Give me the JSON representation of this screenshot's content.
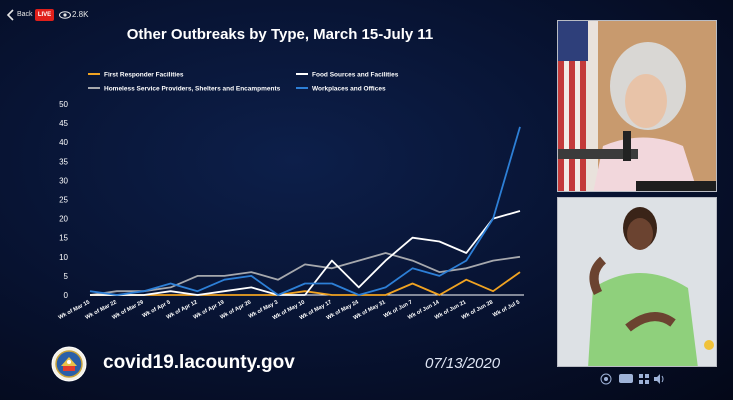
{
  "topbar": {
    "back_label": "Back",
    "live_label": "LIVE",
    "viewer_count": "2.8K"
  },
  "chart_data": {
    "type": "line",
    "title": "Other Outbreaks by Type, March 15-July 11",
    "categories": [
      "Wk of Mar 15",
      "Wk of Mar 22",
      "Wk of Mar 29",
      "Wk of Apr 5",
      "Wk of Apr 12",
      "Wk of Apr 19",
      "Wk of Apr 26",
      "Wk of May 3",
      "Wk of May 10",
      "Wk of May 17",
      "Wk of May 24",
      "Wk of May 31",
      "Wk of Jun 7",
      "Wk of Jun 14",
      "Wk of Jun 21",
      "Wk of Jun 28",
      "Wk of Jul 5"
    ],
    "ylim": [
      0,
      50
    ],
    "yticks": [
      0,
      5,
      10,
      15,
      20,
      25,
      30,
      35,
      40,
      45,
      50
    ],
    "legend_position": "top",
    "series": [
      {
        "name": "First Responder Facilities",
        "color": "#f0a322",
        "values": [
          0,
          0,
          0,
          0,
          0,
          0,
          0,
          0,
          1,
          0,
          0,
          0,
          3,
          0,
          4,
          1,
          6
        ]
      },
      {
        "name": "Food Sources and Facilities",
        "color": "#ffffff",
        "values": [
          0,
          0,
          0,
          1,
          0,
          1,
          2,
          0,
          0,
          9,
          2,
          9,
          15,
          14,
          11,
          20,
          22
        ]
      },
      {
        "name": "Homeless Service Providers, Shelters and Encampments",
        "color": "#a6a8ad",
        "values": [
          0,
          1,
          1,
          2,
          5,
          5,
          6,
          4,
          8,
          7,
          9,
          11,
          9,
          6,
          7,
          9,
          10
        ]
      },
      {
        "name": "Workplaces and Offices",
        "color": "#2d7fd6",
        "values": [
          1,
          0,
          1,
          3,
          1,
          4,
          5,
          0,
          3,
          3,
          0,
          2,
          7,
          5,
          9,
          20,
          44
        ]
      }
    ]
  },
  "footer": {
    "website": "covid19.lacounty.gov",
    "date": "07/13/2020"
  },
  "colors": {
    "background": "#071230",
    "live_red": "#e0201b"
  },
  "icons": [
    "back-chevron-icon",
    "eye-icon",
    "county-seal-icon",
    "accessibility-icon",
    "chat-icon",
    "grid-icon",
    "volume-icon"
  ]
}
